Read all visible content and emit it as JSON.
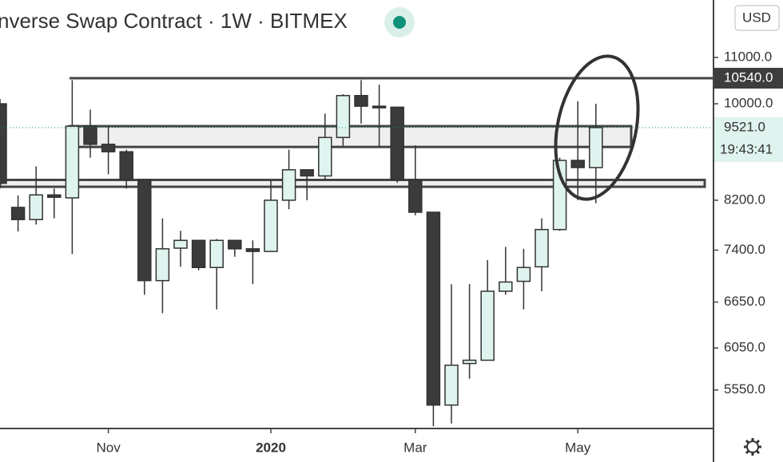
{
  "chart_data": {
    "type": "candlestick",
    "title": "nverse Swap Contract · 1W · BITMEX",
    "currency": "USD",
    "categories": [
      null,
      null,
      null,
      null,
      null,
      null,
      "Nov",
      null,
      null,
      null,
      null,
      null,
      null,
      null,
      null,
      "2020",
      null,
      null,
      null,
      null,
      null,
      null,
      null,
      "Mar",
      null,
      null,
      null,
      null,
      null,
      null,
      null,
      null,
      "May",
      null
    ],
    "open": [
      10000,
      8080,
      7880,
      8290,
      8240,
      9550,
      9200,
      9060,
      8550,
      6950,
      7430,
      7550,
      7140,
      7550,
      7420,
      7380,
      8200,
      8730,
      8620,
      9330,
      10170,
      9950,
      9930,
      8550,
      8000,
      5380,
      5860,
      5900,
      6800,
      6940,
      7150,
      7720,
      8900,
      8770
    ],
    "high": [
      10100,
      8280,
      8790,
      8400,
      10500,
      9880,
      9550,
      9100,
      8550,
      7900,
      7700,
      7550,
      7570,
      7550,
      7550,
      8550,
      9100,
      8730,
      9800,
      10200,
      10500,
      10400,
      9930,
      9180,
      8000,
      6900,
      6900,
      7250,
      7450,
      7420,
      7900,
      8950,
      10050,
      10000
    ],
    "low": [
      8400,
      7690,
      7800,
      7900,
      7340,
      8950,
      8650,
      8400,
      6750,
      6500,
      7150,
      7100,
      6550,
      7300,
      6900,
      7370,
      8050,
      8200,
      8550,
      9170,
      9600,
      9150,
      8500,
      7950,
      5150,
      5180,
      5680,
      5900,
      6750,
      6550,
      6800,
      7700,
      8200,
      8150
    ],
    "close": [
      8490,
      7880,
      8290,
      8250,
      9550,
      9200,
      9060,
      8550,
      6950,
      7420,
      7550,
      7140,
      7550,
      7420,
      7380,
      8200,
      8730,
      8620,
      9330,
      10170,
      9950,
      9930,
      8550,
      8000,
      5380,
      5840,
      5900,
      6800,
      6930,
      7140,
      7720,
      8900,
      8770,
      9521
    ],
    "up_color": "#dff3ef",
    "down_color": "#3b3b3b",
    "log_scale": true,
    "ylim": [
      5127,
      12380
    ],
    "yticks": [
      {
        "value": 11000,
        "label": "11000.0"
      },
      {
        "value": 10000,
        "label": "10000.0"
      },
      {
        "value": 8200,
        "label": "8200.0"
      },
      {
        "value": 7400,
        "label": "7400.0"
      },
      {
        "value": 6650,
        "label": "6650.0"
      },
      {
        "value": 6050,
        "label": "6050.0"
      },
      {
        "value": 5550,
        "label": "5550.0"
      }
    ],
    "price_lines": [
      {
        "value": 10540,
        "label": "10540.0"
      }
    ],
    "zones": [
      {
        "low": 9150,
        "high": 9550
      },
      {
        "low": 8430,
        "high": 8550
      }
    ],
    "last_price": {
      "value": 9521,
      "label": "9521.0"
    },
    "countdown": "19:43:41"
  }
}
